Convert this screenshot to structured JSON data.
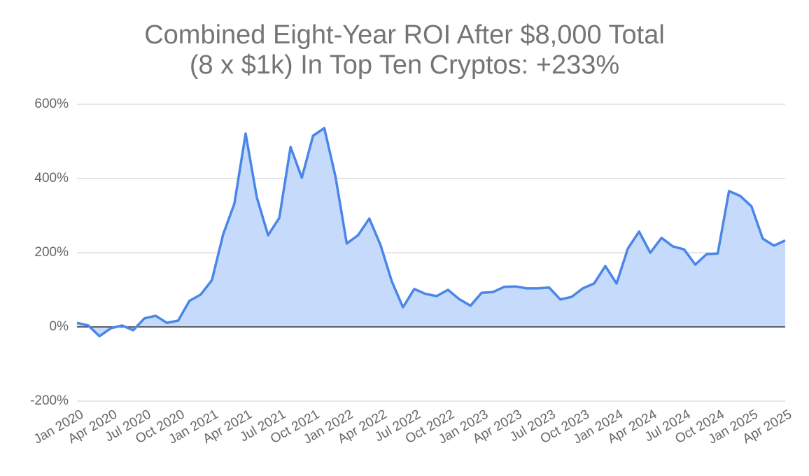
{
  "chart_data": {
    "type": "area",
    "title": [
      "Combined Eight-Year ROI After $8,000 Total",
      "(8 x $1k) In Top Ten Cryptos: +233%"
    ],
    "categories": [
      "Jan 2020",
      null,
      null,
      "Apr 2020",
      null,
      null,
      "Jul 2020",
      null,
      null,
      "Oct 2020",
      null,
      null,
      "Jan 2021",
      null,
      null,
      "Apr 2021",
      null,
      null,
      "Jul 2021",
      null,
      null,
      "Oct 2021",
      null,
      null,
      "Jan 2022",
      null,
      null,
      "Apr 2022",
      null,
      null,
      "Jul 2022",
      null,
      null,
      "Oct 2022",
      null,
      null,
      "Jan 2023",
      null,
      null,
      "Apr 2023",
      null,
      null,
      "Jul 2023",
      null,
      null,
      "Oct 2023",
      null,
      null,
      "Jan 2024",
      null,
      null,
      "Apr 2024",
      null,
      null,
      "Jul 2024",
      null,
      null,
      "Oct 2024",
      null,
      null,
      "Jan 2025",
      null,
      null,
      "Apr 2025"
    ],
    "series": [
      {
        "name": "ROI",
        "color": "#4a86e8",
        "fill": "#c6dafc",
        "values": [
          11,
          4,
          -25,
          -4,
          4,
          -9,
          23,
          30,
          11,
          17,
          70,
          87,
          126,
          249,
          332,
          521,
          349,
          247,
          294,
          485,
          402,
          515,
          536,
          404,
          225,
          247,
          292,
          221,
          123,
          53,
          102,
          89,
          83,
          100,
          75,
          57,
          92,
          94,
          108,
          109,
          104,
          104,
          106,
          74,
          81,
          104,
          117,
          164,
          117,
          211,
          257,
          200,
          240,
          217,
          209,
          168,
          196,
          198,
          366,
          353,
          325,
          238,
          219,
          233
        ]
      }
    ],
    "ylim": [
      -200,
      600
    ],
    "yticks": [
      {
        "value": -200,
        "label": "-200%"
      },
      {
        "value": 0,
        "label": "0%"
      },
      {
        "value": 200,
        "label": "200%"
      },
      {
        "value": 400,
        "label": "400%"
      },
      {
        "value": 600,
        "label": "600%"
      }
    ],
    "grid": true
  }
}
